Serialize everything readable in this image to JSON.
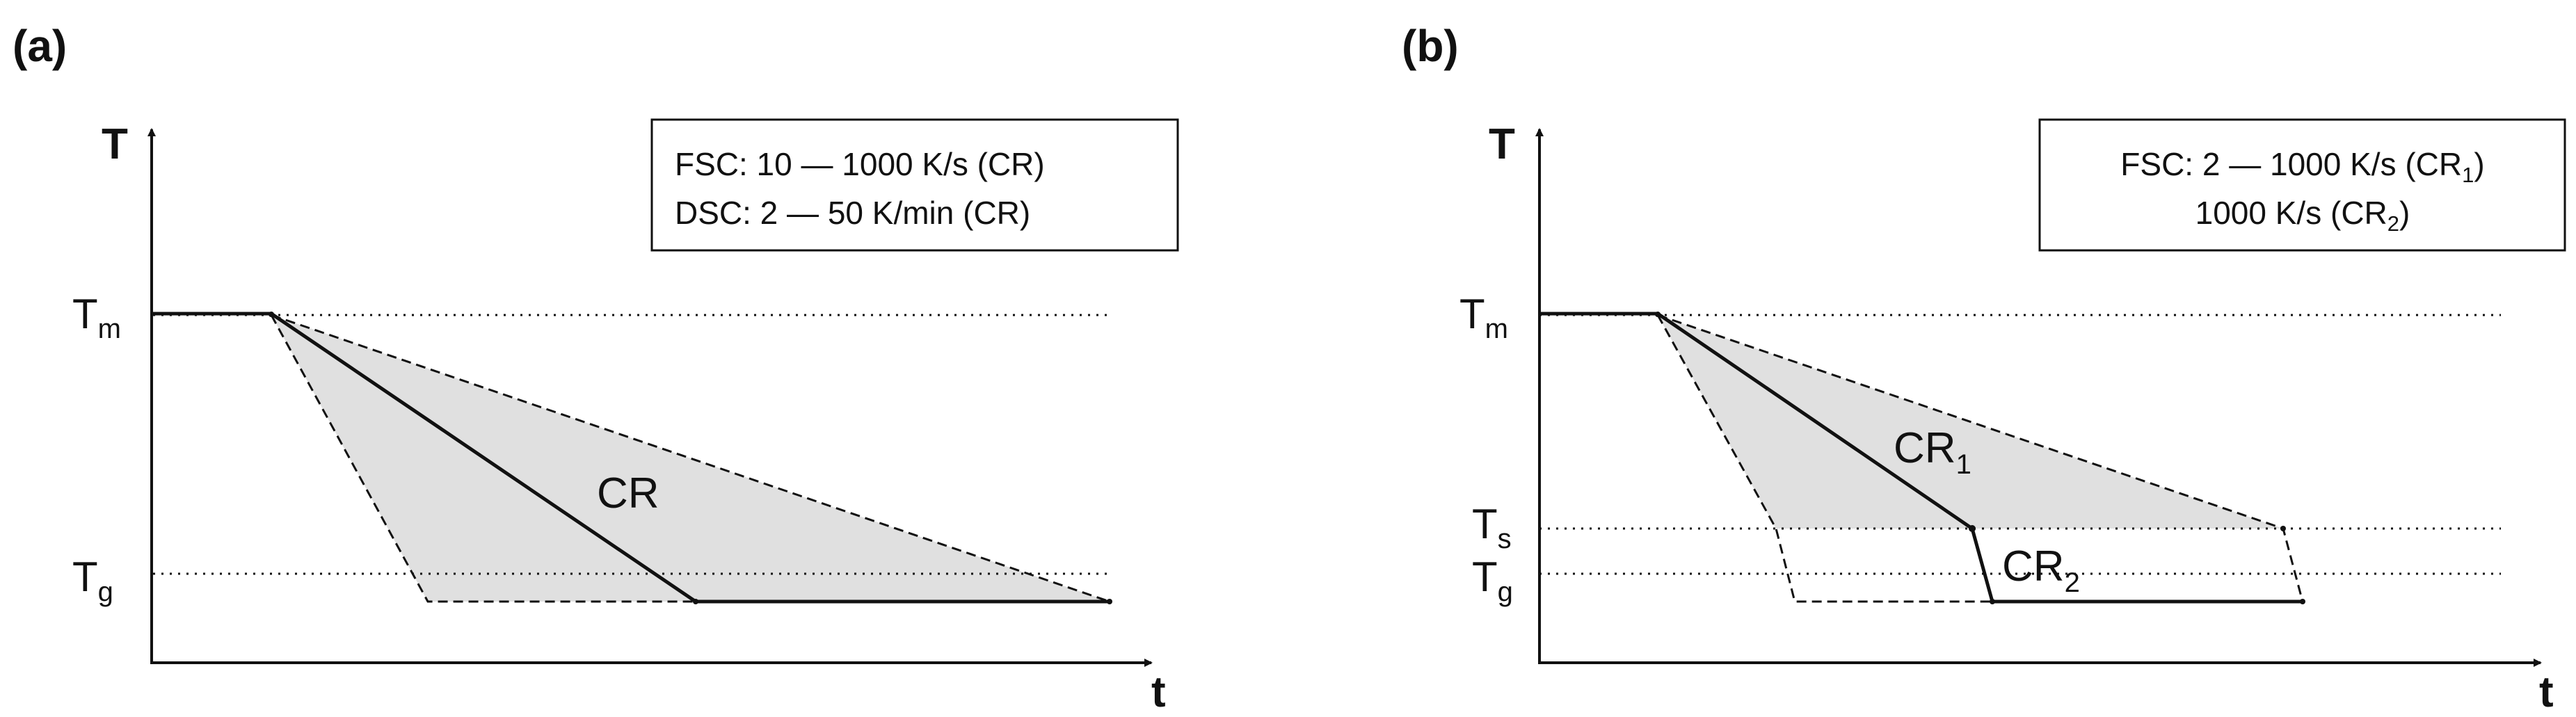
{
  "panel_a": {
    "panel_label": "(a)",
    "y_axis_label": "T",
    "x_axis_label": "t",
    "level_upper": "T",
    "level_upper_sub": "m",
    "level_lower": "T",
    "level_lower_sub": "g",
    "curve_label": "CR",
    "legend": {
      "line1": "FSC: 10 — 1000 K/s (CR)",
      "line2": "DSC: 2 — 50 K/min (CR)"
    }
  },
  "panel_b": {
    "panel_label": "(b)",
    "y_axis_label": "T",
    "x_axis_label": "t",
    "level_upper": "T",
    "level_upper_sub": "m",
    "level_mid": "T",
    "level_mid_sub": "s",
    "level_lower": "T",
    "level_lower_sub": "g",
    "curve1_label": "CR",
    "curve1_sub": "1",
    "curve2_label": "CR",
    "curve2_sub": "2",
    "legend": {
      "line1_prefix": "FSC: 2 — 1000 K/s (CR",
      "line1_sub": "1",
      "line1_suffix": ")",
      "line2_prefix": "1000 K/s (CR",
      "line2_sub": "2",
      "line2_suffix": ")"
    }
  },
  "colors": {
    "shade": "#e0e0e0",
    "line": "#111111"
  }
}
